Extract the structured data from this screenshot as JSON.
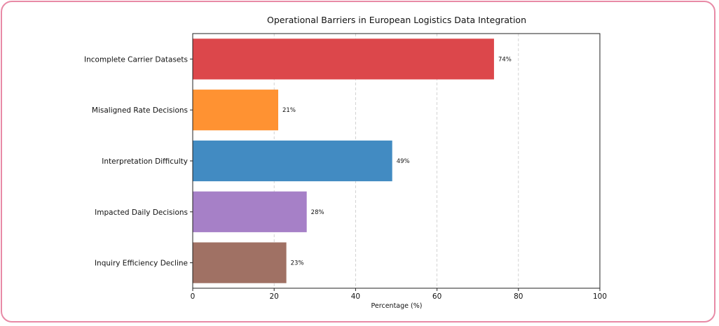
{
  "chart_data": {
    "type": "bar",
    "orientation": "horizontal",
    "title": "Operational Barriers in European Logistics Data Integration",
    "xlabel": "Percentage (%)",
    "ylabel": "",
    "xlim": [
      0,
      100
    ],
    "xticks": [
      0,
      20,
      40,
      60,
      80,
      100
    ],
    "grid": "x dashed",
    "value_label_suffix": "%",
    "categories": [
      "Incomplete Carrier Datasets",
      "Misaligned Rate Decisions",
      "Interpretation Difficulty",
      "Impacted Daily Decisions",
      "Inquiry Efficiency Decline"
    ],
    "values": [
      74,
      21,
      49,
      28,
      23
    ],
    "colors": [
      "#dc474b",
      "#ff9232",
      "#428bc2",
      "#a680c7",
      "#a07164"
    ]
  }
}
